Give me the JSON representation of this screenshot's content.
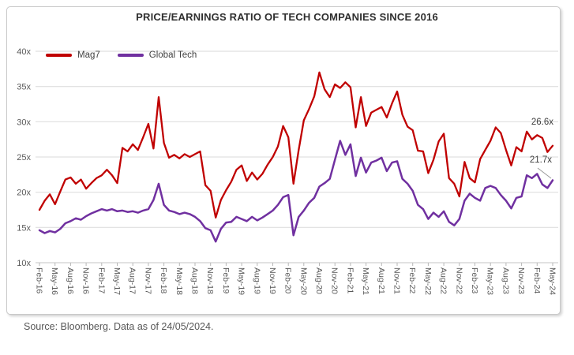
{
  "card": {
    "title": "PRICE/EARNINGS RATIO OF TECH COMPANIES SINCE 2016"
  },
  "source_note": "Source: Bloomberg. Data as of 24/05/2024.",
  "chart_data": {
    "type": "line",
    "title": "PRICE/EARNINGS RATIO OF TECH COMPANIES SINCE 2016",
    "xlabel": "",
    "ylabel": "",
    "ylim": [
      10,
      40
    ],
    "y_tick_step": 5,
    "y_tick_suffix": "x",
    "grid": "horizontal",
    "legend_position": "top-left-inside",
    "x_frequency": "monthly",
    "x_tick_every": 3,
    "x_tick_labels": [
      "Feb-16",
      "May-16",
      "Aug-16",
      "Nov-16",
      "Feb-17",
      "May-17",
      "Aug-17",
      "Nov-17",
      "Feb-18",
      "May-18",
      "Aug-18",
      "Nov-18",
      "Feb-19",
      "May-19",
      "Aug-19",
      "Nov-19",
      "Feb-20",
      "May-20",
      "Aug-20",
      "Nov-20",
      "Feb-21",
      "May-21",
      "Aug-21",
      "Nov-21",
      "Feb-22",
      "May-22",
      "Aug-22",
      "Nov-22",
      "Feb-23",
      "May-23",
      "Aug-23",
      "Nov-23",
      "Feb-24",
      "May-24"
    ],
    "series": [
      {
        "name": "Mag7",
        "color": "#C00000",
        "values": [
          17.5,
          18.8,
          19.7,
          18.3,
          20.1,
          21.8,
          22.1,
          21.2,
          21.8,
          20.5,
          21.3,
          22.0,
          22.4,
          23.2,
          22.4,
          21.3,
          26.3,
          25.8,
          26.8,
          26.0,
          27.8,
          29.7,
          26.2,
          33.5,
          27.0,
          24.9,
          25.3,
          24.8,
          25.4,
          25.0,
          25.4,
          25.8,
          21.0,
          20.2,
          16.4,
          18.9,
          20.3,
          21.5,
          23.2,
          23.8,
          21.6,
          22.8,
          21.8,
          22.6,
          23.9,
          25.0,
          26.5,
          29.4,
          27.8,
          21.2,
          26.0,
          30.2,
          31.8,
          33.6,
          37.0,
          34.6,
          33.5,
          35.3,
          34.8,
          35.6,
          34.9,
          29.2,
          33.5,
          29.4,
          31.3,
          31.7,
          32.1,
          30.6,
          32.6,
          34.3,
          31.0,
          29.3,
          28.8,
          25.9,
          25.8,
          22.7,
          24.6,
          27.2,
          28.3,
          22.0,
          21.2,
          19.4,
          24.3,
          22.0,
          21.4,
          24.7,
          26.0,
          27.3,
          29.2,
          28.4,
          26.0,
          23.8,
          26.4,
          25.8,
          28.6,
          27.5,
          28.1,
          27.7,
          25.7,
          26.6
        ]
      },
      {
        "name": "Global Tech",
        "color": "#7030A0",
        "values": [
          14.6,
          14.2,
          14.5,
          14.3,
          14.8,
          15.6,
          15.9,
          16.3,
          16.1,
          16.6,
          17.0,
          17.3,
          17.6,
          17.4,
          17.6,
          17.3,
          17.4,
          17.2,
          17.3,
          17.1,
          17.4,
          17.6,
          18.9,
          21.2,
          18.2,
          17.4,
          17.2,
          16.9,
          17.1,
          16.9,
          16.5,
          15.9,
          14.9,
          14.6,
          13.0,
          14.8,
          15.7,
          15.8,
          16.5,
          16.2,
          15.9,
          16.5,
          16.0,
          16.4,
          16.9,
          17.4,
          18.2,
          19.3,
          19.6,
          13.9,
          16.5,
          17.4,
          18.5,
          19.2,
          20.8,
          21.3,
          21.9,
          24.6,
          27.3,
          25.3,
          26.8,
          22.3,
          24.9,
          22.8,
          24.2,
          24.5,
          24.9,
          23.0,
          24.2,
          24.4,
          21.9,
          21.2,
          20.2,
          18.2,
          17.6,
          16.2,
          17.1,
          16.5,
          17.3,
          15.8,
          15.3,
          16.2,
          18.8,
          19.8,
          19.2,
          18.8,
          20.6,
          20.9,
          20.6,
          19.6,
          18.8,
          17.7,
          19.2,
          19.4,
          22.4,
          22.0,
          22.6,
          21.1,
          20.6,
          21.7
        ]
      }
    ],
    "annotations": [
      {
        "text": "26.6x",
        "series": "Mag7",
        "at": "end"
      },
      {
        "text": "21.7x",
        "series": "Global Tech",
        "at": "end"
      }
    ]
  }
}
